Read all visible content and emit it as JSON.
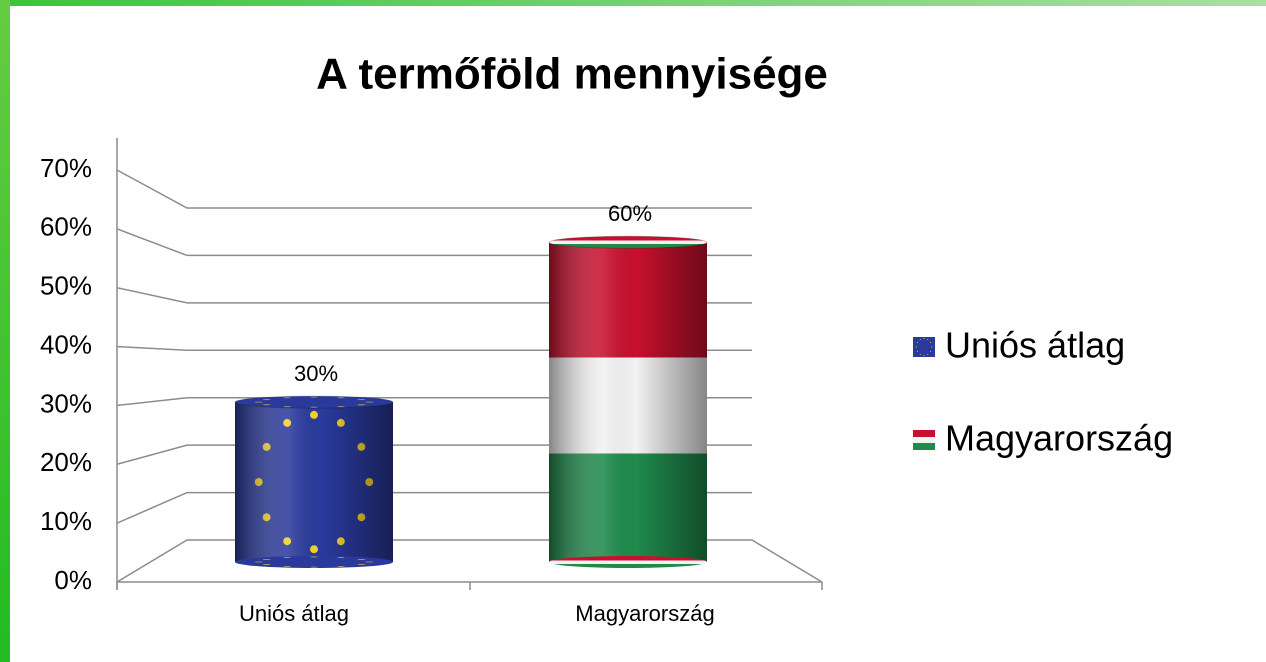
{
  "chart_data": {
    "type": "bar",
    "title": "A termőföld mennyisége",
    "categories": [
      "Uniós átlag",
      "Magyarország"
    ],
    "values": [
      30,
      60
    ],
    "value_labels": [
      "30%",
      "60%"
    ],
    "ylim": [
      0,
      70
    ],
    "yticks": [
      {
        "value": 0,
        "label": "0%"
      },
      {
        "value": 10,
        "label": "10%"
      },
      {
        "value": 20,
        "label": "20%"
      },
      {
        "value": 30,
        "label": "30%"
      },
      {
        "value": 40,
        "label": "40%"
      },
      {
        "value": 50,
        "label": "50%"
      },
      {
        "value": 60,
        "label": "60%"
      },
      {
        "value": 70,
        "label": "70%"
      }
    ],
    "grid": true
  }
}
